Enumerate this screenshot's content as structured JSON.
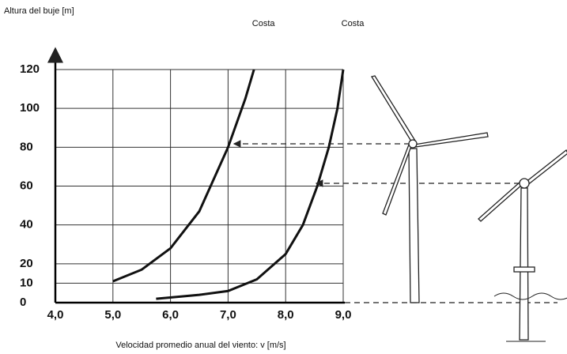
{
  "chart_data": {
    "type": "line",
    "y_label": "Altura del buje [m]",
    "x_label": "Velocidad promedio anual del viento: v [m/s]",
    "xlim": [
      4,
      9
    ],
    "ylim": [
      0,
      120
    ],
    "xticks": [
      {
        "value": 4,
        "label": "4,0"
      },
      {
        "value": 5,
        "label": "5,0"
      },
      {
        "value": 6,
        "label": "6,0"
      },
      {
        "value": 7,
        "label": "7,0"
      },
      {
        "value": 8,
        "label": "8,0"
      },
      {
        "value": 9,
        "label": "9,0"
      }
    ],
    "yticks": [
      0,
      10,
      20,
      40,
      60,
      80,
      100,
      120
    ],
    "grid": true,
    "series": [
      {
        "name": "Costa",
        "color": "#111111",
        "x": [
          5.0,
          5.5,
          6.0,
          6.5,
          7.0,
          7.3,
          7.45
        ],
        "values": [
          11,
          17,
          28,
          47,
          80,
          105,
          120
        ]
      },
      {
        "name": "Costa",
        "color": "#111111",
        "x": [
          5.75,
          6.5,
          7.0,
          7.5,
          8.0,
          8.3,
          8.55,
          8.75,
          8.9,
          9.0
        ],
        "values": [
          2,
          4,
          6,
          12,
          25,
          40,
          60,
          80,
          100,
          120
        ]
      }
    ]
  }
}
